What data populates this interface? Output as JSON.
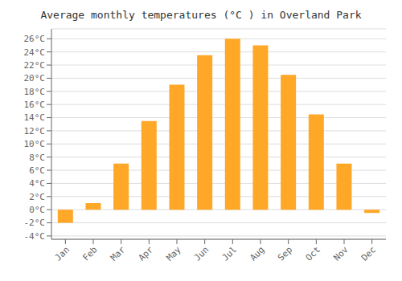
{
  "chart_data": {
    "type": "bar",
    "title": "Average monthly temperatures (°C ) in Overland Park",
    "categories": [
      "Jan",
      "Feb",
      "Mar",
      "Apr",
      "May",
      "Jun",
      "Jul",
      "Aug",
      "Sep",
      "Oct",
      "Nov",
      "Dec"
    ],
    "values": [
      -2.0,
      1.0,
      7.0,
      13.5,
      19.0,
      23.5,
      26.0,
      25.0,
      20.5,
      14.5,
      7.0,
      -0.5
    ],
    "color": "#FFA726",
    "ylim": [
      -4.5,
      27.5
    ],
    "yticks": [
      {
        "value": -4,
        "label": "-4°C"
      },
      {
        "value": -2,
        "label": "-2°C"
      },
      {
        "value": 0,
        "label": "0°C"
      },
      {
        "value": 2,
        "label": "2°C"
      },
      {
        "value": 4,
        "label": "4°C"
      },
      {
        "value": 6,
        "label": "6°C"
      },
      {
        "value": 8,
        "label": "8°C"
      },
      {
        "value": 10,
        "label": "10°C"
      },
      {
        "value": 12,
        "label": "12°C"
      },
      {
        "value": 14,
        "label": "14°C"
      },
      {
        "value": 16,
        "label": "16°C"
      },
      {
        "value": 18,
        "label": "18°C"
      },
      {
        "value": 20,
        "label": "20°C"
      },
      {
        "value": 22,
        "label": "22°C"
      },
      {
        "value": 24,
        "label": "24°C"
      },
      {
        "value": 26,
        "label": "26°C"
      }
    ],
    "grid": true
  }
}
